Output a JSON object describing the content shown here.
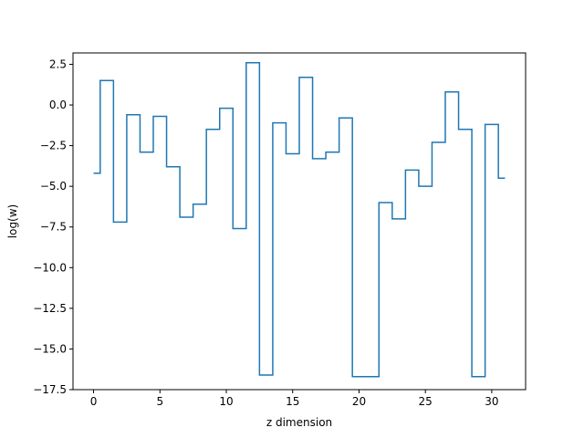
{
  "chart_data": {
    "type": "line",
    "drawstyle": "steps-mid",
    "title": "",
    "xlabel": "z dimension",
    "ylabel": "log(w)",
    "xlim": [
      -1.55,
      32.55
    ],
    "ylim": [
      -17.5,
      3.2
    ],
    "xticks": [
      0,
      5,
      10,
      15,
      20,
      25,
      30
    ],
    "xtick_labels": [
      "0",
      "5",
      "10",
      "15",
      "20",
      "25",
      "30"
    ],
    "yticks": [
      2.5,
      0.0,
      -2.5,
      -5.0,
      -7.5,
      -10.0,
      -12.5,
      -15.0,
      -17.5
    ],
    "ytick_labels": [
      "2.5",
      "0.0",
      "−2.5",
      "−5.0",
      "−7.5",
      "−10.0",
      "−12.5",
      "−15.0",
      "−17.5"
    ],
    "grid": false,
    "legend": "none",
    "series": [
      {
        "color": "#1f77b4",
        "x": [
          0,
          1,
          2,
          3,
          4,
          5,
          6,
          7,
          8,
          9,
          10,
          11,
          12,
          13,
          14,
          15,
          16,
          17,
          18,
          19,
          20,
          21,
          22,
          23,
          24,
          25,
          26,
          27,
          28,
          29,
          30,
          31
        ],
        "values": [
          -4.2,
          1.5,
          -7.2,
          -0.6,
          -2.9,
          -0.7,
          -3.8,
          -6.9,
          -6.1,
          -1.5,
          -0.2,
          -7.6,
          2.6,
          -16.6,
          -1.1,
          -3.0,
          1.7,
          -3.3,
          -2.9,
          -0.8,
          -16.7,
          -16.7,
          -6.0,
          -7.0,
          -4.0,
          -5.0,
          -2.3,
          0.8,
          -1.5,
          -16.7,
          -1.2,
          -4.5
        ]
      }
    ]
  }
}
